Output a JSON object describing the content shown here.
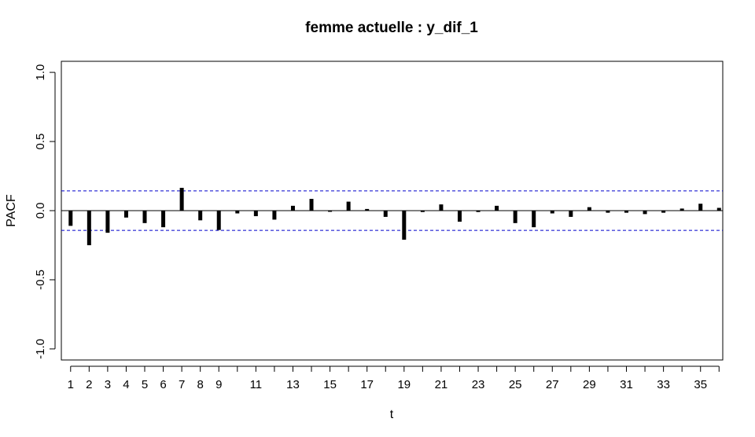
{
  "chart_data": {
    "type": "bar",
    "title": "femme actuelle : y_dif_1",
    "xlabel": "t",
    "ylabel": "PACF",
    "xlim": [
      0.5,
      36.2
    ],
    "ylim": [
      -1.08,
      1.08
    ],
    "x_tick_values": [
      1,
      2,
      3,
      4,
      5,
      6,
      7,
      8,
      9,
      10,
      11,
      12,
      13,
      14,
      15,
      16,
      17,
      18,
      19,
      20,
      21,
      22,
      23,
      24,
      25,
      26,
      27,
      28,
      29,
      30,
      31,
      32,
      33,
      34,
      35,
      36
    ],
    "x_tick_labels": [
      "1",
      "2",
      "3",
      "4",
      "5",
      "6",
      "7",
      "8",
      "9",
      "11",
      "13",
      "15",
      "17",
      "19",
      "21",
      "23",
      "25",
      "27",
      "29",
      "31",
      "33",
      "35"
    ],
    "x_tick_label_values": [
      1,
      2,
      3,
      4,
      5,
      6,
      7,
      8,
      9,
      11,
      13,
      15,
      17,
      19,
      21,
      23,
      25,
      27,
      29,
      31,
      33,
      35
    ],
    "y_tick_values": [
      -1.0,
      -0.5,
      0.0,
      0.5,
      1.0
    ],
    "y_tick_labels": [
      "-1.0",
      "-0.5",
      "0.0",
      "0.5",
      "1.0"
    ],
    "confidence_bound": 0.143,
    "grid": false,
    "lags": [
      1,
      2,
      3,
      4,
      5,
      6,
      7,
      8,
      9,
      10,
      11,
      12,
      13,
      14,
      15,
      16,
      17,
      18,
      19,
      20,
      21,
      22,
      23,
      24,
      25,
      26,
      27,
      28,
      29,
      30,
      31,
      32,
      33,
      34,
      35,
      36
    ],
    "values": [
      -0.11,
      -0.25,
      -0.16,
      -0.05,
      -0.09,
      -0.12,
      0.165,
      -0.07,
      -0.14,
      -0.02,
      -0.04,
      -0.065,
      0.035,
      0.085,
      0.0,
      0.065,
      0.012,
      -0.045,
      -0.21,
      -0.01,
      0.045,
      -0.08,
      -0.01,
      0.035,
      -0.09,
      -0.12,
      -0.02,
      -0.045,
      0.025,
      -0.015,
      -0.015,
      -0.025,
      -0.015,
      0.015,
      0.05,
      0.02
    ],
    "colors": {
      "bar": "#000000",
      "bound": "#0000cc",
      "axis": "#000000"
    }
  }
}
